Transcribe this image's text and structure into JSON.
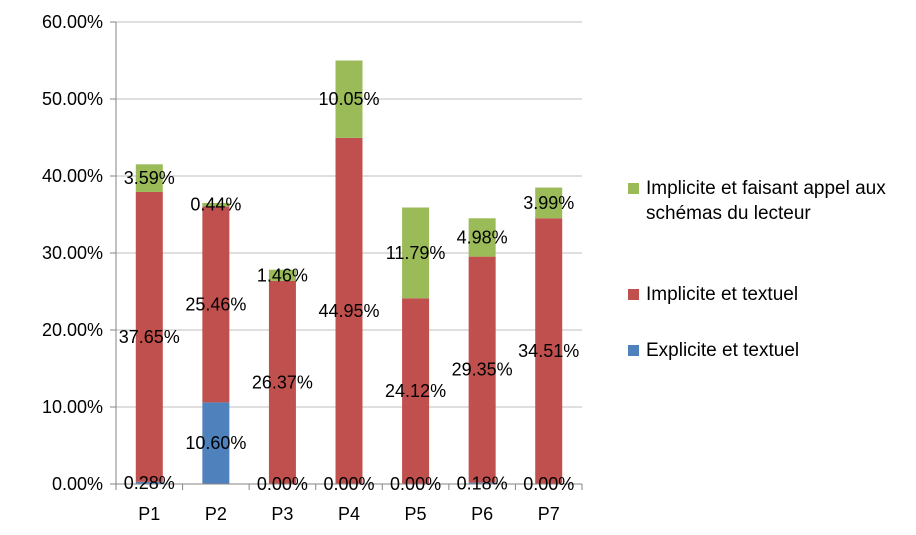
{
  "chart_data": {
    "type": "bar",
    "stacked": true,
    "categories": [
      "P1",
      "P2",
      "P3",
      "P4",
      "P5",
      "P6",
      "P7"
    ],
    "ylim": [
      0,
      60
    ],
    "yticks": [
      "0.00%",
      "10.00%",
      "20.00%",
      "30.00%",
      "40.00%",
      "50.00%",
      "60.00%"
    ],
    "grid": true,
    "legend_position": "right",
    "series": [
      {
        "name": "Explicite et textuel",
        "color": "#4F81BD",
        "values": [
          0.28,
          10.6,
          0.0,
          0.0,
          0.0,
          0.18,
          0.0
        ],
        "labels": [
          "0.28%",
          "10.60%",
          "0.00%",
          "0.00%",
          "0.00%",
          "0.18%",
          "0.00%"
        ]
      },
      {
        "name": "Implicite et textuel",
        "color": "#C0504D",
        "values": [
          37.65,
          25.46,
          26.37,
          44.95,
          24.12,
          29.35,
          34.51
        ],
        "labels": [
          "37.65%",
          "25.46%",
          "26.37%",
          "44.95%",
          "24.12%",
          "29.35%",
          "34.51%"
        ]
      },
      {
        "name": "Implicite et faisant appel aux schémas du lecteur",
        "color": "#9BBB59",
        "values": [
          3.59,
          0.44,
          1.46,
          10.05,
          11.79,
          4.98,
          3.99
        ],
        "labels": [
          "3.59%",
          "0.44%",
          "1.46%",
          "10.05%",
          "11.79%",
          "4.98%",
          "3.99%"
        ]
      }
    ]
  }
}
